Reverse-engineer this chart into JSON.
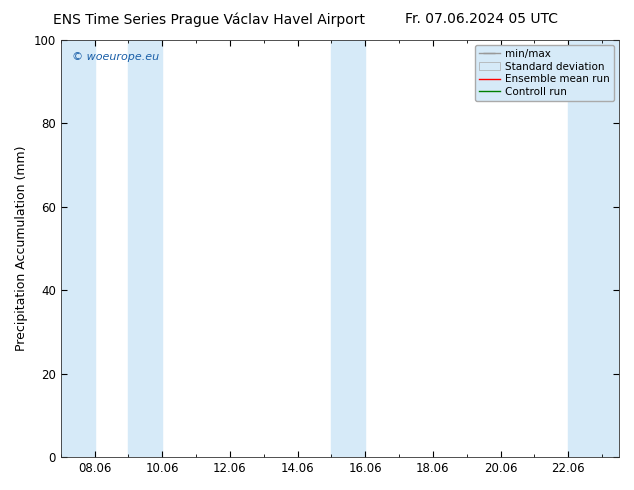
{
  "title_left": "ENS Time Series Prague Václav Havel Airport",
  "title_right": "Fr. 07.06.2024 05 UTC",
  "ylabel": "Precipitation Accumulation (mm)",
  "ylim": [
    0,
    100
  ],
  "yticks": [
    0,
    20,
    40,
    60,
    80,
    100
  ],
  "watermark": "© woeurope.eu",
  "legend_labels": [
    "min/max",
    "Standard deviation",
    "Ensemble mean run",
    "Controll run"
  ],
  "shade_color": "#d6eaf8",
  "bg_color": "#ffffff",
  "title_fontsize": 10,
  "tick_fontsize": 8.5,
  "label_fontsize": 9,
  "shaded_spans": [
    [
      0.0,
      1.0
    ],
    [
      2.0,
      3.0
    ],
    [
      8.0,
      9.0
    ],
    [
      15.0,
      16.5
    ]
  ],
  "xtick_positions": [
    1,
    3,
    5,
    7,
    9,
    11,
    13,
    15
  ],
  "xtick_labels": [
    "08.06",
    "10.06",
    "12.06",
    "14.06",
    "16.06",
    "18.06",
    "20.06",
    "22.06"
  ],
  "xmin": 0.0,
  "xmax": 16.5
}
